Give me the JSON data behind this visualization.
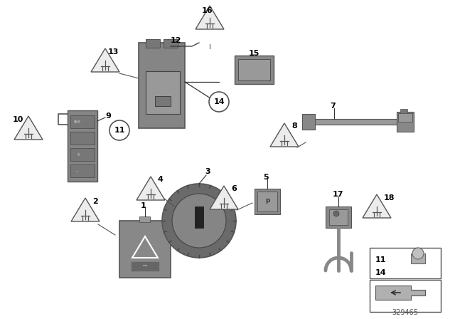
{
  "bg_color": "#ffffff",
  "part_number": "329465",
  "fig_width": 6.4,
  "fig_height": 4.48,
  "gray_dark": "#7a7a7a",
  "gray_mid": "#909090",
  "gray_light": "#b0b0b0",
  "edge_color": "#555555",
  "label_size": 8,
  "tri_size": 0.028
}
